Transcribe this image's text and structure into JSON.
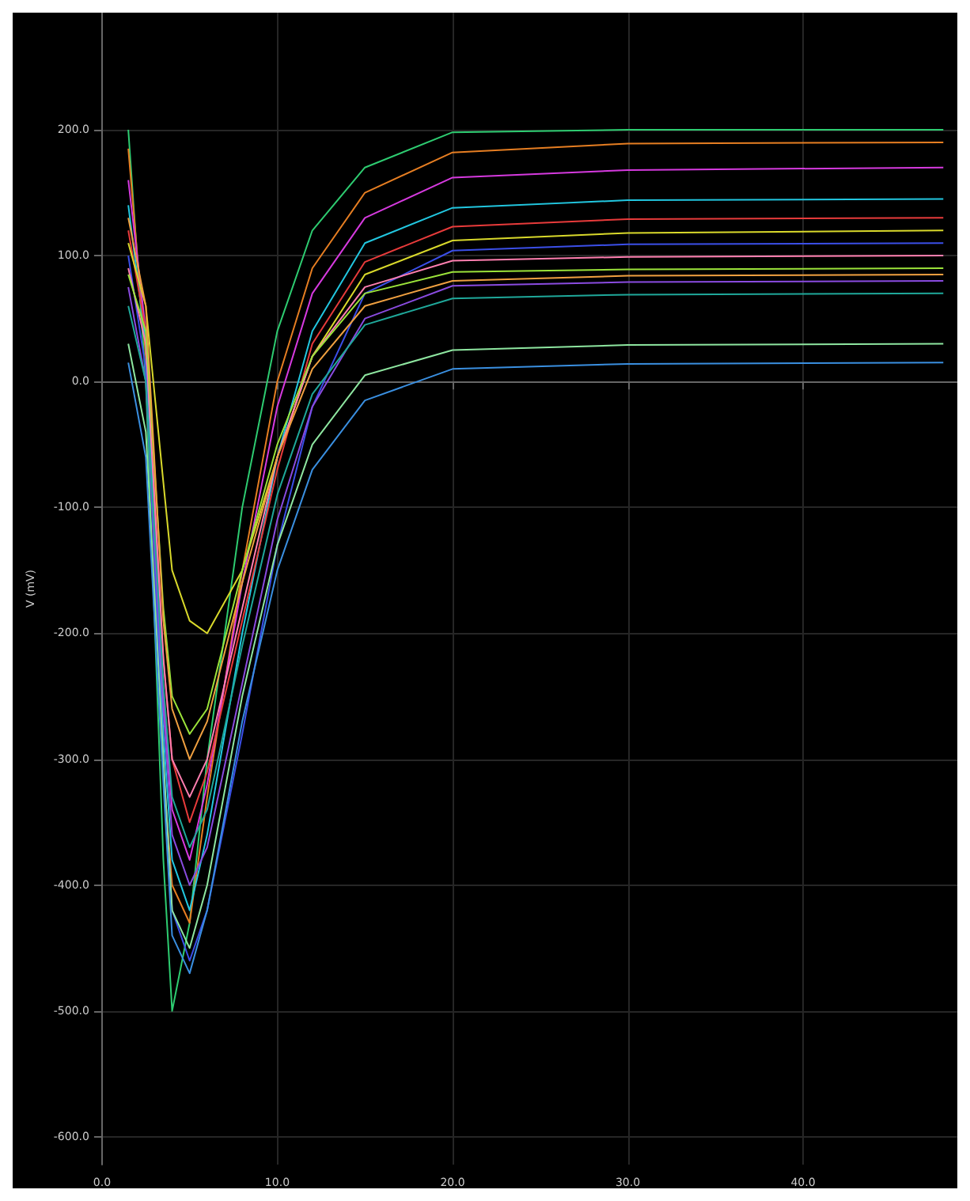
{
  "chart_data": {
    "type": "line",
    "ylabel": "V (mV)",
    "x": [
      1.5,
      2.5,
      3.5,
      4,
      5,
      6,
      8,
      10,
      12,
      15,
      20,
      30,
      48
    ],
    "series": [
      {
        "color": "#2ecc71",
        "values": [
          200,
          0,
          -380,
          -500,
          -430,
          -300,
          -100,
          40,
          120,
          170,
          198,
          200,
          200
        ]
      },
      {
        "color": "#e67e22",
        "values": [
          185,
          20,
          -310,
          -400,
          -430,
          -330,
          -150,
          0,
          90,
          150,
          182,
          189,
          190
        ]
      },
      {
        "color": "#d63adf",
        "values": [
          160,
          40,
          -250,
          -340,
          -380,
          -320,
          -160,
          -20,
          70,
          130,
          162,
          168,
          170
        ]
      },
      {
        "color": "#22c7e0",
        "values": [
          140,
          30,
          -280,
          -380,
          -420,
          -360,
          -200,
          -60,
          40,
          110,
          138,
          144,
          145
        ]
      },
      {
        "color": "#e83b3b",
        "values": [
          120,
          40,
          -220,
          -300,
          -350,
          -310,
          -190,
          -70,
          30,
          95,
          123,
          129,
          130
        ]
      },
      {
        "color": "#d9d92b",
        "values": [
          110,
          60,
          -80,
          -150,
          -190,
          -200,
          -150,
          -60,
          20,
          85,
          112,
          118,
          120
        ]
      },
      {
        "color": "#3b4fe8",
        "values": [
          100,
          10,
          -300,
          -420,
          -460,
          -420,
          -280,
          -130,
          -20,
          70,
          104,
          109,
          110
        ]
      },
      {
        "color": "#ff7fb0",
        "values": [
          90,
          30,
          -220,
          -300,
          -330,
          -300,
          -180,
          -60,
          20,
          75,
          96,
          99,
          100
        ]
      },
      {
        "color": "#9be33a",
        "values": [
          85,
          40,
          -180,
          -250,
          -280,
          -260,
          -150,
          -50,
          20,
          70,
          87,
          89,
          90
        ]
      },
      {
        "color": "#8a4be0",
        "values": [
          75,
          0,
          -260,
          -360,
          -400,
          -370,
          -240,
          -110,
          -20,
          50,
          76,
          79,
          80
        ]
      },
      {
        "color": "#1fa89a",
        "values": [
          60,
          0,
          -240,
          -330,
          -370,
          -340,
          -210,
          -90,
          -10,
          45,
          66,
          69,
          70
        ]
      },
      {
        "color": "#8ee6a0",
        "values": [
          30,
          -40,
          -300,
          -420,
          -450,
          -400,
          -250,
          -130,
          -50,
          5,
          25,
          29,
          30
        ]
      },
      {
        "color": "#3a8fe0",
        "values": [
          15,
          -60,
          -320,
          -440,
          -470,
          -420,
          -270,
          -150,
          -70,
          -15,
          10,
          14,
          15
        ]
      },
      {
        "color": "#f0a040",
        "values": [
          130,
          60,
          -190,
          -260,
          -300,
          -270,
          -160,
          -60,
          10,
          60,
          80,
          84,
          85
        ]
      }
    ],
    "xlim": [
      0,
      48.8
    ],
    "ylim": [
      -622,
      293
    ],
    "xticks": [
      {
        "value": 0,
        "label": "0.0"
      },
      {
        "value": 10,
        "label": "10.0"
      },
      {
        "value": 20,
        "label": "20.0"
      },
      {
        "value": 30,
        "label": "30.0"
      },
      {
        "value": 40,
        "label": "40.0"
      }
    ],
    "yticks": [
      {
        "value": -600,
        "label": "-600.0"
      },
      {
        "value": -500,
        "label": "-500.0"
      },
      {
        "value": -400,
        "label": "-400.0"
      },
      {
        "value": -300,
        "label": "-300.0"
      },
      {
        "value": -200,
        "label": "-200.0"
      },
      {
        "value": -100,
        "label": "-100.0"
      },
      {
        "value": 0,
        "label": "0.0"
      },
      {
        "value": 100,
        "label": "100.0"
      },
      {
        "value": 200,
        "label": "200.0"
      }
    ],
    "grid": true,
    "marker": "none",
    "line_style": "solid"
  }
}
